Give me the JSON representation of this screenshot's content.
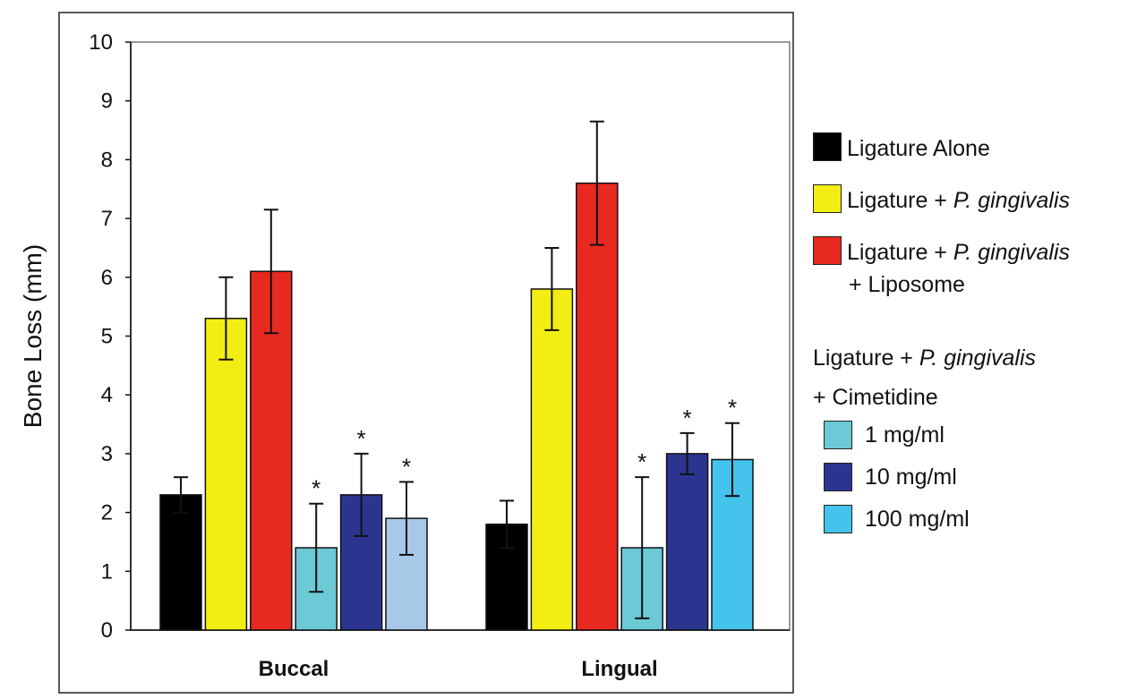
{
  "chart_data": {
    "type": "bar",
    "ylabel": "Bone Loss (mm)",
    "ylim": [
      0,
      10
    ],
    "yticks": [
      "0",
      "1",
      "2",
      "3",
      "4",
      "5",
      "6",
      "7",
      "8",
      "9",
      "10"
    ],
    "categories": [
      "Buccal",
      "Lingual"
    ],
    "series": [
      {
        "name": "Ligature Alone",
        "color": "#000000",
        "values": [
          2.3,
          1.8
        ],
        "errors": [
          0.3,
          0.4
        ],
        "significant": [
          false,
          false
        ]
      },
      {
        "name": "Ligature + P. gingivalis",
        "color": "#f2ee14",
        "values": [
          5.3,
          5.8
        ],
        "errors": [
          0.7,
          0.7
        ],
        "significant": [
          false,
          false
        ]
      },
      {
        "name": "Ligature + P. gingivalis + Liposome",
        "color": "#e8291f",
        "values": [
          6.1,
          7.6
        ],
        "errors": [
          1.05,
          1.05
        ],
        "significant": [
          false,
          false
        ]
      },
      {
        "name": "1 mg/ml",
        "color": "#6ccad6",
        "values": [
          1.4,
          1.4
        ],
        "errors": [
          0.75,
          1.2
        ],
        "significant": [
          true,
          true
        ]
      },
      {
        "name": "10 mg/ml",
        "color": "#2b3590",
        "values": [
          2.3,
          3.0
        ],
        "errors": [
          0.7,
          0.35
        ],
        "significant": [
          true,
          true
        ]
      },
      {
        "name": "100 mg/ml",
        "color": "#44c3ec",
        "values": [
          1.9,
          2.9
        ],
        "errors": [
          0.62,
          0.62
        ],
        "significant": [
          true,
          true
        ],
        "bar_colors": [
          "#a8c8e8",
          "#44c3ec"
        ]
      }
    ],
    "significance_marker": "*",
    "legend": {
      "placement": "right",
      "items": [
        {
          "label": "Ligature Alone",
          "color": "#000000"
        },
        {
          "label_prefix": "Ligature + ",
          "label_italic": "P. gingivalis",
          "color": "#f2ee14"
        },
        {
          "label_prefix": "Ligature + ",
          "label_italic": "P. gingivalis",
          "label_line2": "+ Liposome",
          "color": "#e8291f"
        }
      ],
      "group_header": {
        "prefix": "Ligature + ",
        "italic": "P. gingivalis",
        "line2": "+ Cimetidine"
      },
      "group_items": [
        {
          "label": "1 mg/ml",
          "color": "#6ccad6"
        },
        {
          "label": "10 mg/ml",
          "color": "#2b3590"
        },
        {
          "label": "100 mg/ml",
          "color": "#44c3ec"
        }
      ]
    },
    "grid": false
  }
}
